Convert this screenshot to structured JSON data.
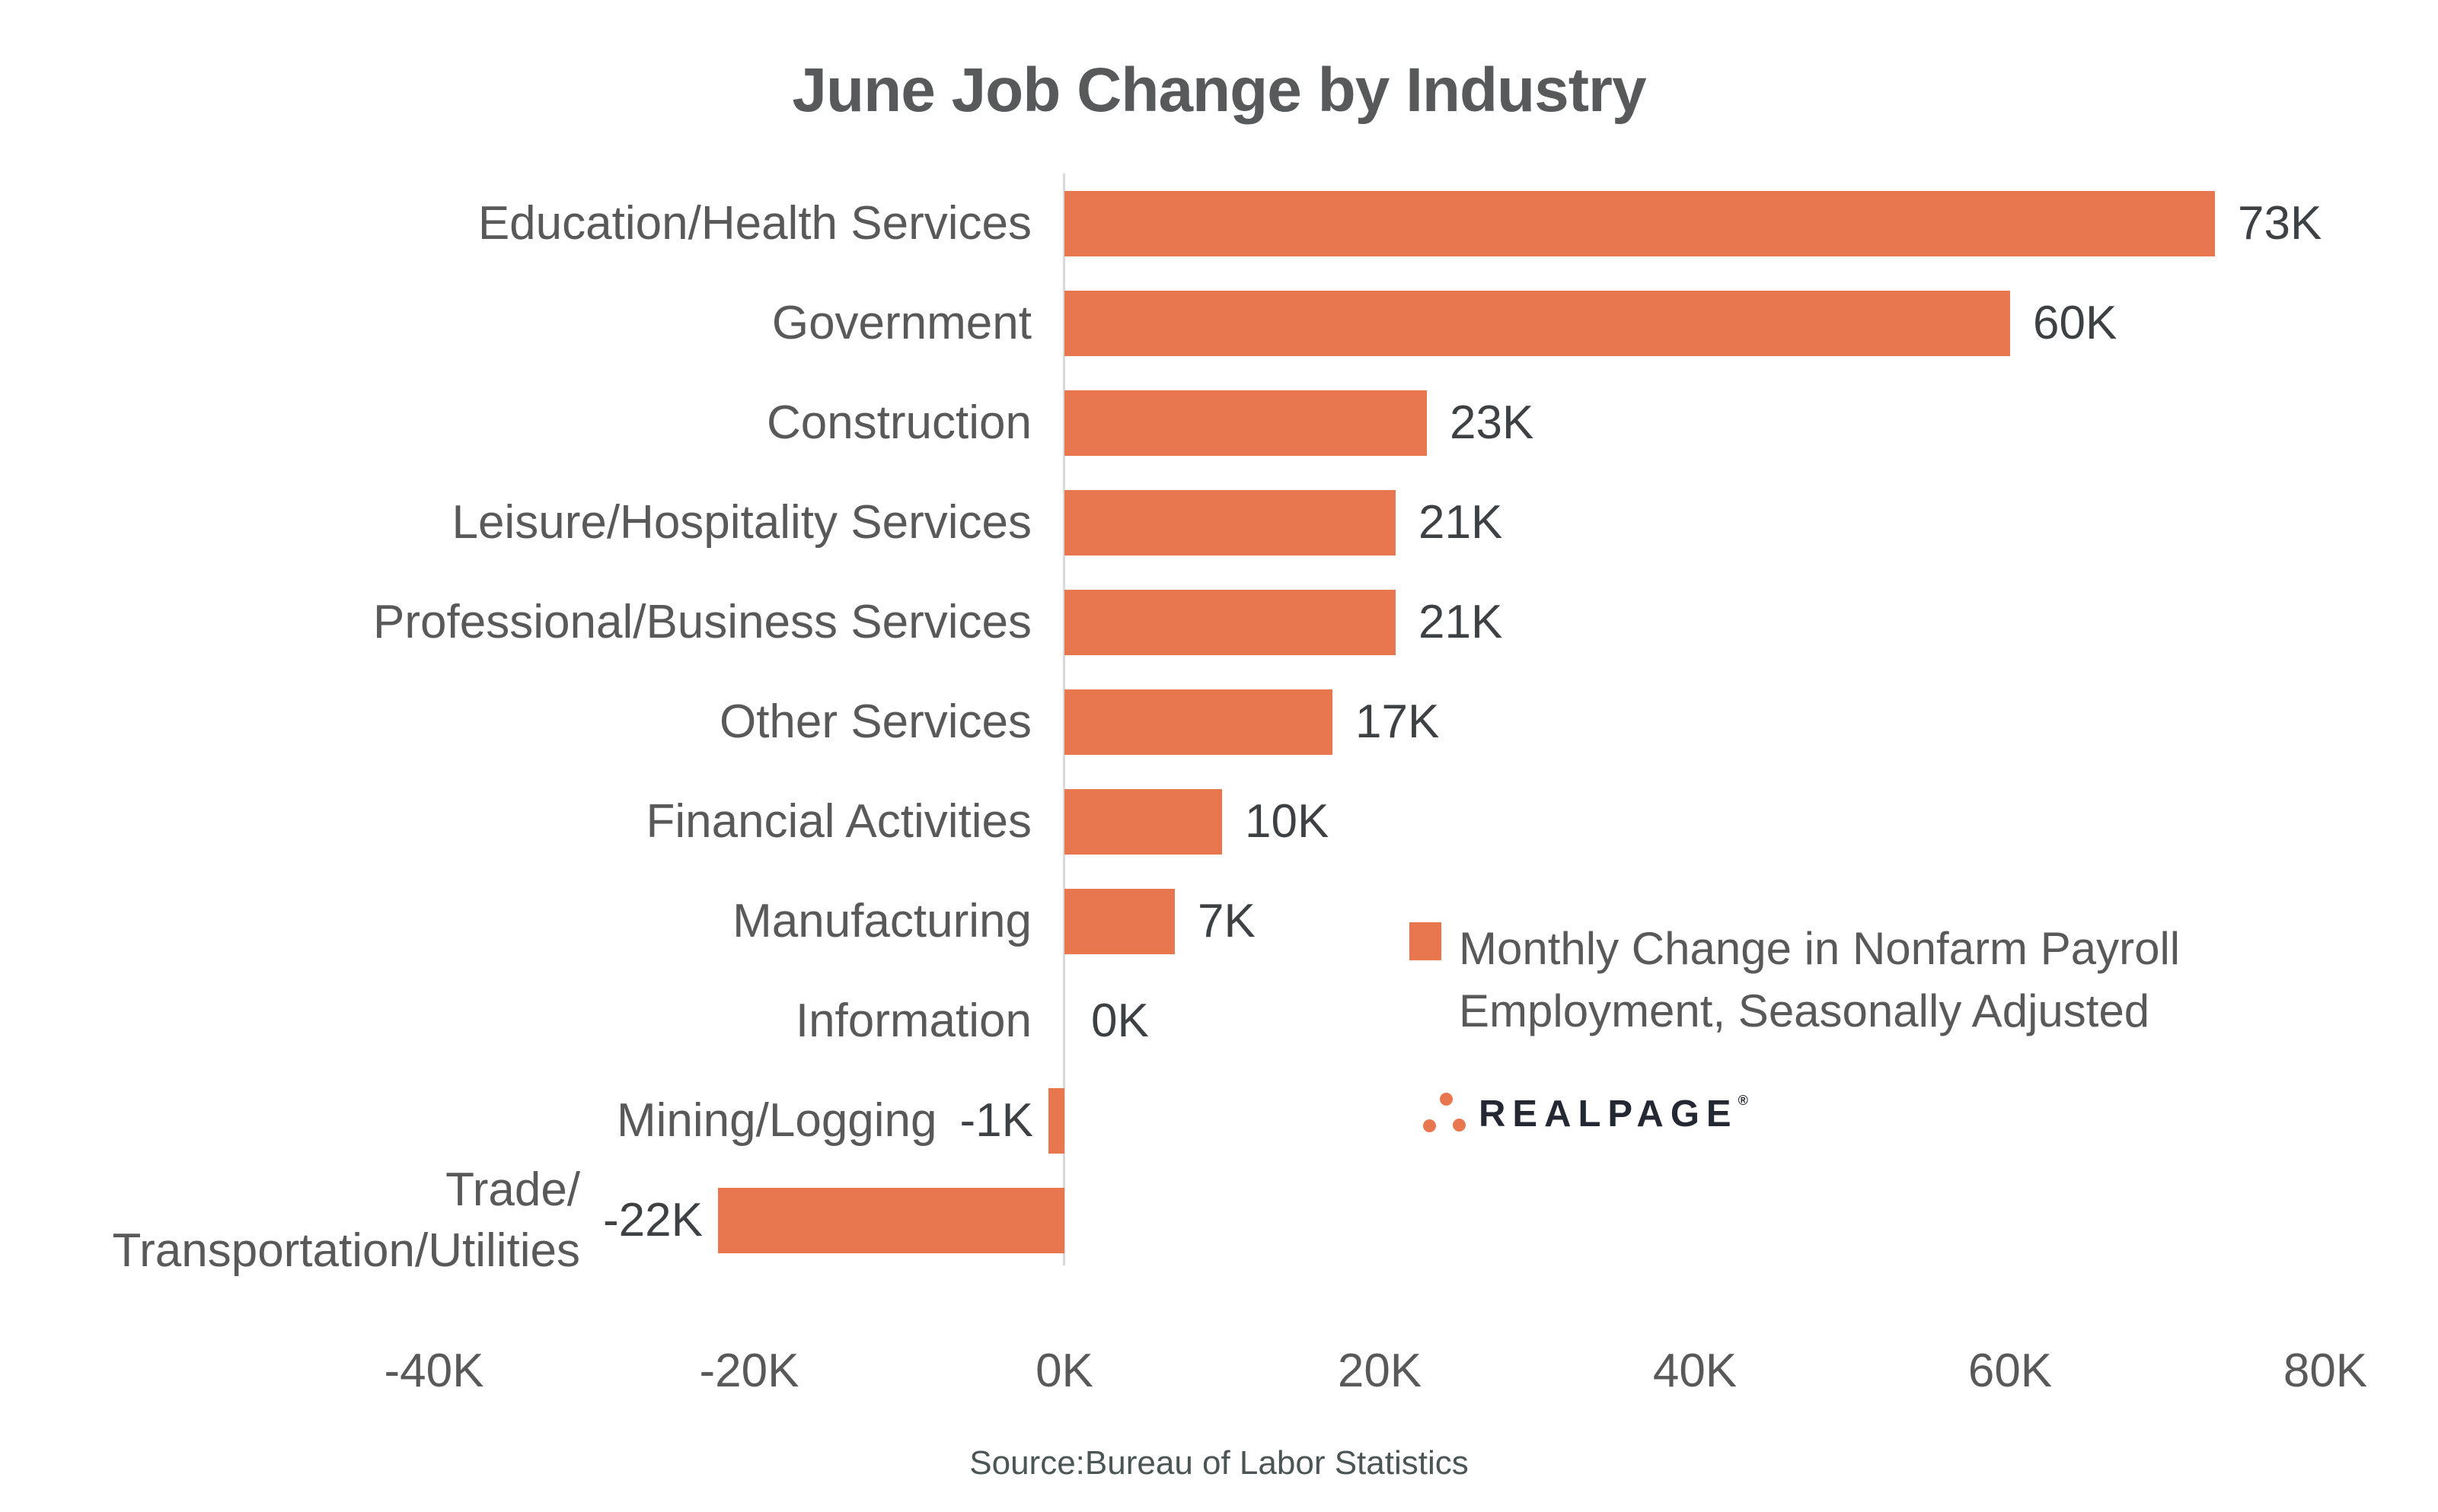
{
  "chart_data": {
    "type": "bar",
    "orientation": "horizontal",
    "title": "June Job Change by Industry",
    "categories": [
      "Education/Health Services",
      "Government",
      "Construction",
      "Leisure/Hospitality Services",
      "Professional/Business Services",
      "Other Services",
      "Financial Activities",
      "Manufacturing",
      "Information",
      "Mining/Logging",
      "Trade/\nTransportation/Utilities"
    ],
    "values": [
      73,
      60,
      23,
      21,
      21,
      17,
      10,
      7,
      0,
      -1,
      -22
    ],
    "value_labels": [
      "73K",
      "60K",
      "23K",
      "21K",
      "21K",
      "17K",
      "10K",
      "7K",
      "0K",
      "-1K",
      "-22K"
    ],
    "unit": "K",
    "xlim": [
      -48,
      86
    ],
    "x_ticks": [
      {
        "label": "-40K",
        "value": -40
      },
      {
        "label": "-20K",
        "value": -20
      },
      {
        "label": "0K",
        "value": 0
      },
      {
        "label": "20K",
        "value": 20
      },
      {
        "label": "40K",
        "value": 40
      },
      {
        "label": "60K",
        "value": 60
      },
      {
        "label": "80K",
        "value": 80
      }
    ],
    "grid": false,
    "legend_position": "right-middle",
    "bar_color": "#e8764f"
  },
  "title": "June Job Change by Industry",
  "legend": {
    "line1": "Monthly Change in Nonfarm Payroll",
    "line2": "Employment, Seasonally Adjusted",
    "swatch_color": "#e8764f"
  },
  "logo": {
    "text": "REALPAGE",
    "registered_mark": "®",
    "dot_color": "#e8764f",
    "text_color": "#242833"
  },
  "source": "Source:Bureau of Labor Statistics",
  "colors": {
    "bar": "#e8764f",
    "title_text": "#58595b",
    "category_text": "#595959",
    "value_text": "#3e4143",
    "tick_text": "#595959",
    "axis_line": "#d9d9d9",
    "background": "#ffffff"
  }
}
